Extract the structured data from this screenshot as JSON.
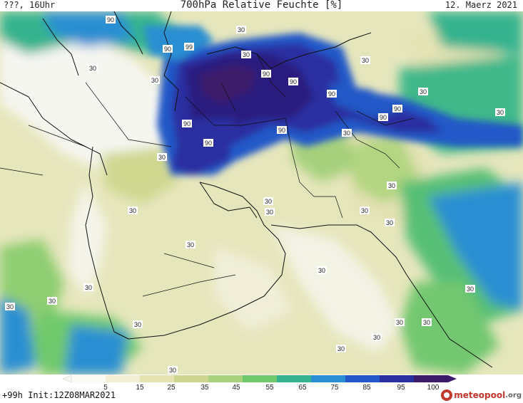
{
  "header": {
    "valid_time": "???, 16Uhr",
    "title": "700hPa Relative Feuchte [%]",
    "date": "12. Maerz 2021"
  },
  "footer": {
    "run_info": "+99h Init:12Z08MAR2021"
  },
  "brand": {
    "name": "meteopool",
    "tld": ".org",
    "color": "#c0392b"
  },
  "legend": {
    "ticks": [
      "5",
      "15",
      "25",
      "35",
      "45",
      "55",
      "65",
      "75",
      "85",
      "95",
      "100"
    ],
    "colors": [
      "#fbfbf5",
      "#f1efd6",
      "#e3e2b0",
      "#cdd58e",
      "#a9d27e",
      "#6fc96c",
      "#34b38e",
      "#2a8fd2",
      "#2358c8",
      "#2a2fa0",
      "#3c1b6a"
    ]
  },
  "map_labels": [
    {
      "text": "90"
    },
    {
      "text": "30"
    },
    {
      "text": "90"
    },
    {
      "text": "99"
    },
    {
      "text": "30"
    },
    {
      "text": "30"
    },
    {
      "text": "30"
    },
    {
      "text": "90"
    },
    {
      "text": "90"
    },
    {
      "text": "90"
    },
    {
      "text": "30"
    },
    {
      "text": "90"
    },
    {
      "text": "90"
    },
    {
      "text": "30"
    },
    {
      "text": "90"
    },
    {
      "text": "90"
    },
    {
      "text": "30"
    },
    {
      "text": "30"
    },
    {
      "text": "90"
    },
    {
      "text": "30"
    },
    {
      "text": "30"
    },
    {
      "text": "30"
    },
    {
      "text": "30"
    },
    {
      "text": "30"
    },
    {
      "text": "30"
    },
    {
      "text": "30"
    },
    {
      "text": "30"
    },
    {
      "text": "30"
    },
    {
      "text": "30"
    },
    {
      "text": "30"
    },
    {
      "text": "30"
    },
    {
      "text": "30"
    },
    {
      "text": "30"
    },
    {
      "text": "30"
    },
    {
      "text": "30"
    },
    {
      "text": "30"
    },
    {
      "text": "30"
    },
    {
      "text": "30"
    }
  ]
}
